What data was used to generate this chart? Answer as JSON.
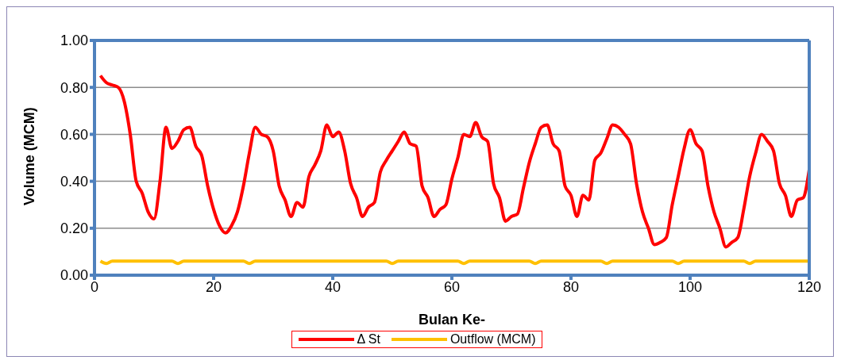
{
  "chart_data": {
    "type": "line",
    "xlabel": "Bulan Ke-",
    "ylabel": "Volume (MCM)",
    "x": [
      1,
      2,
      3,
      4,
      5,
      6,
      7,
      8,
      9,
      10,
      11,
      12,
      13,
      14,
      15,
      16,
      17,
      18,
      19,
      20,
      21,
      22,
      23,
      24,
      25,
      26,
      27,
      28,
      29,
      30,
      31,
      32,
      33,
      34,
      35,
      36,
      37,
      38,
      39,
      40,
      41,
      42,
      43,
      44,
      45,
      46,
      47,
      48,
      49,
      50,
      51,
      52,
      53,
      54,
      55,
      56,
      57,
      58,
      59,
      60,
      61,
      62,
      63,
      64,
      65,
      66,
      67,
      68,
      69,
      70,
      71,
      72,
      73,
      74,
      75,
      76,
      77,
      78,
      79,
      80,
      81,
      82,
      83,
      84,
      85,
      86,
      87,
      88,
      89,
      90,
      91,
      92,
      93,
      94,
      95,
      96,
      97,
      98,
      99,
      100,
      101,
      102,
      103,
      104,
      105,
      106,
      107,
      108,
      109,
      110,
      111,
      112,
      113,
      114,
      115,
      116,
      117,
      118,
      119,
      120
    ],
    "series": [
      {
        "name": "Δ St",
        "color": "#ff0000",
        "values": [
          0.85,
          0.82,
          0.81,
          0.8,
          0.74,
          0.6,
          0.4,
          0.35,
          0.27,
          0.24,
          0.4,
          0.63,
          0.54,
          0.57,
          0.62,
          0.63,
          0.55,
          0.51,
          0.38,
          0.28,
          0.21,
          0.18,
          0.21,
          0.27,
          0.38,
          0.52,
          0.63,
          0.6,
          0.59,
          0.53,
          0.38,
          0.32,
          0.25,
          0.31,
          0.29,
          0.42,
          0.47,
          0.53,
          0.64,
          0.59,
          0.61,
          0.53,
          0.39,
          0.33,
          0.25,
          0.29,
          0.31,
          0.44,
          0.49,
          0.53,
          0.57,
          0.61,
          0.56,
          0.55,
          0.38,
          0.33,
          0.25,
          0.28,
          0.3,
          0.41,
          0.5,
          0.6,
          0.59,
          0.65,
          0.59,
          0.57,
          0.39,
          0.33,
          0.23,
          0.25,
          0.26,
          0.37,
          0.48,
          0.56,
          0.63,
          0.64,
          0.56,
          0.53,
          0.38,
          0.34,
          0.25,
          0.34,
          0.32,
          0.49,
          0.52,
          0.58,
          0.64,
          0.63,
          0.6,
          0.56,
          0.39,
          0.27,
          0.2,
          0.13,
          0.14,
          0.16,
          0.3,
          0.42,
          0.54,
          0.62,
          0.56,
          0.53,
          0.38,
          0.27,
          0.2,
          0.12,
          0.14,
          0.16,
          0.28,
          0.42,
          0.52,
          0.6,
          0.57,
          0.53,
          0.39,
          0.34,
          0.25,
          0.32,
          0.33,
          0.45
        ]
      },
      {
        "name": "Outflow (MCM)",
        "color": "#ffc000",
        "values": [
          0.06,
          0.05,
          0.06,
          0.06,
          0.06,
          0.06,
          0.06,
          0.06,
          0.06,
          0.06,
          0.06,
          0.06,
          0.06,
          0.05,
          0.06,
          0.06,
          0.06,
          0.06,
          0.06,
          0.06,
          0.06,
          0.06,
          0.06,
          0.06,
          0.06,
          0.05,
          0.06,
          0.06,
          0.06,
          0.06,
          0.06,
          0.06,
          0.06,
          0.06,
          0.06,
          0.06,
          0.06,
          0.06,
          0.06,
          0.06,
          0.06,
          0.06,
          0.06,
          0.06,
          0.06,
          0.06,
          0.06,
          0.06,
          0.06,
          0.05,
          0.06,
          0.06,
          0.06,
          0.06,
          0.06,
          0.06,
          0.06,
          0.06,
          0.06,
          0.06,
          0.06,
          0.05,
          0.06,
          0.06,
          0.06,
          0.06,
          0.06,
          0.06,
          0.06,
          0.06,
          0.06,
          0.06,
          0.06,
          0.05,
          0.06,
          0.06,
          0.06,
          0.06,
          0.06,
          0.06,
          0.06,
          0.06,
          0.06,
          0.06,
          0.06,
          0.05,
          0.06,
          0.06,
          0.06,
          0.06,
          0.06,
          0.06,
          0.06,
          0.06,
          0.06,
          0.06,
          0.06,
          0.05,
          0.06,
          0.06,
          0.06,
          0.06,
          0.06,
          0.06,
          0.06,
          0.06,
          0.06,
          0.06,
          0.06,
          0.05,
          0.06,
          0.06,
          0.06,
          0.06,
          0.06,
          0.06,
          0.06,
          0.06,
          0.06,
          0.06
        ]
      }
    ],
    "xlim": [
      0,
      120
    ],
    "xticks": [
      0,
      20,
      40,
      60,
      80,
      100,
      120
    ],
    "ylim": [
      0,
      1
    ],
    "yticks": [
      {
        "value": 0,
        "label": "0.00"
      },
      {
        "value": 0.2,
        "label": "0.20"
      },
      {
        "value": 0.4,
        "label": "0.40"
      },
      {
        "value": 0.6,
        "label": "0.60"
      },
      {
        "value": 0.8,
        "label": "0.80"
      },
      {
        "value": 1,
        "label": "1.00"
      }
    ],
    "grid": "y",
    "legend": "bottom",
    "marker": "none",
    "line_style": "solid"
  }
}
